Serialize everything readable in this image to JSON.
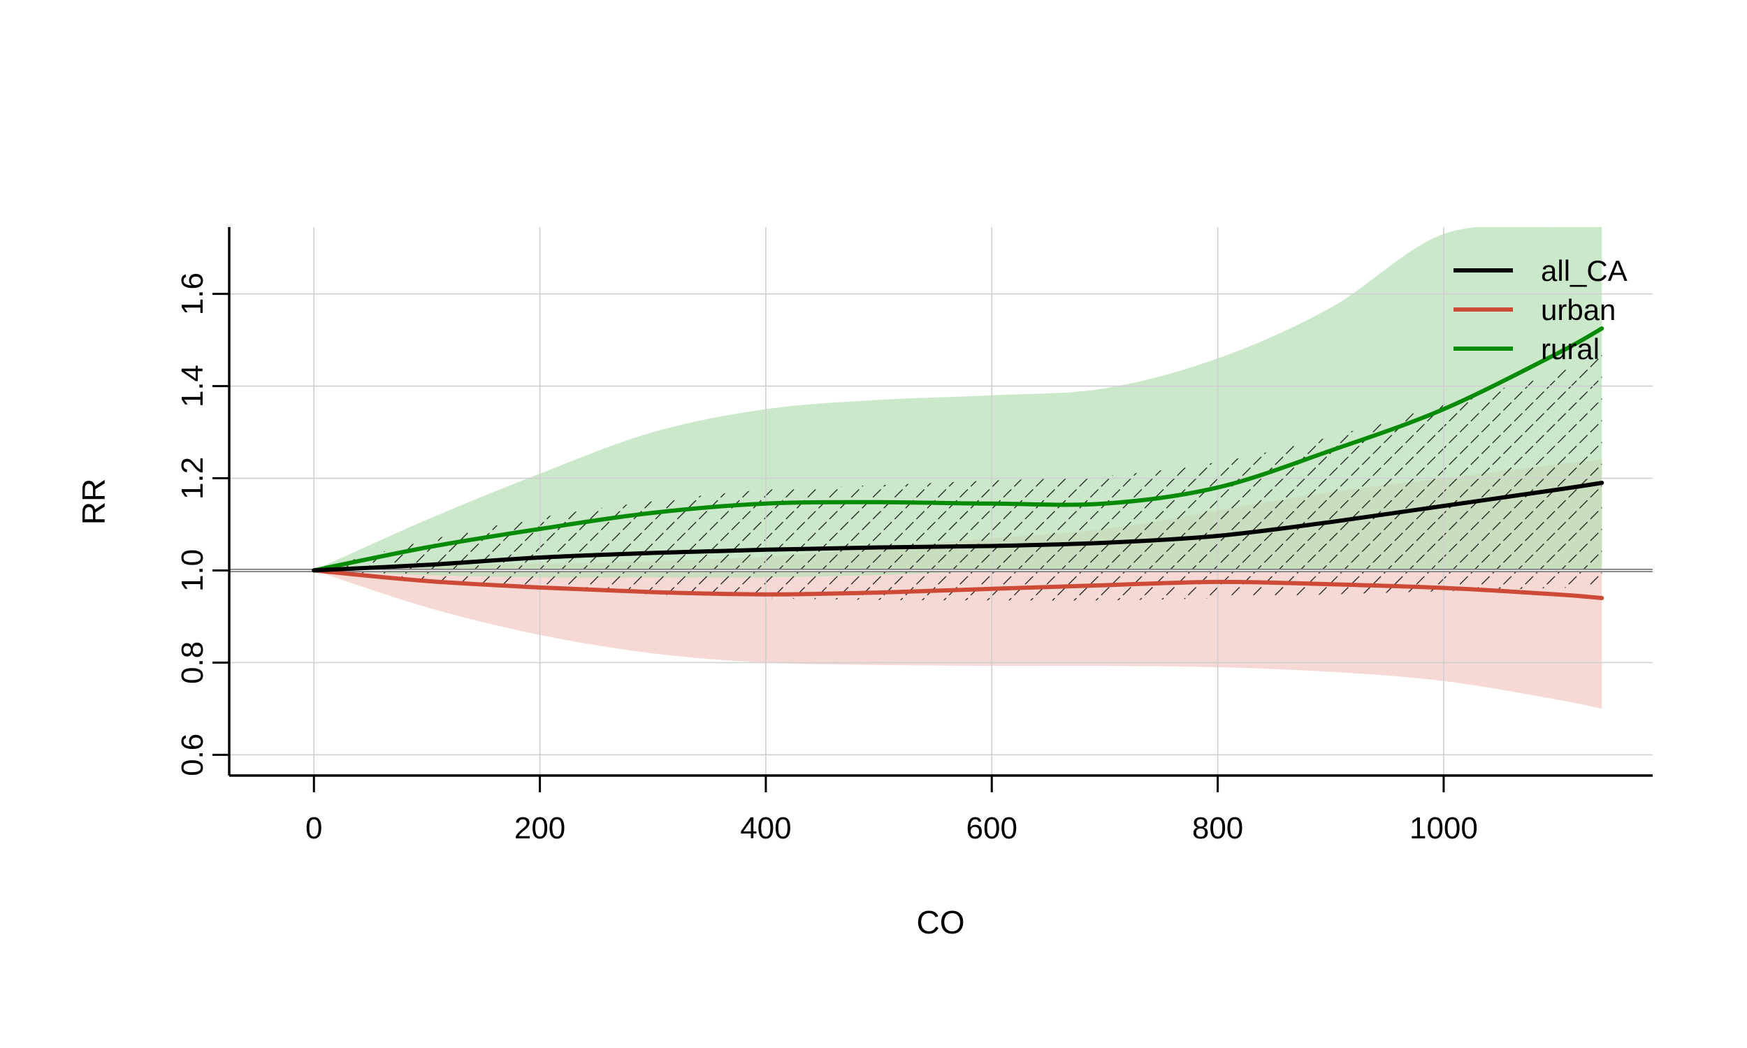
{
  "chart_data": {
    "type": "line",
    "xlabel": "CO",
    "ylabel": "RR",
    "xlim": [
      -75,
      1185
    ],
    "ylim": [
      0.555,
      1.745
    ],
    "xticks": [
      0,
      200,
      400,
      600,
      800,
      1000
    ],
    "yticks": [
      0.6,
      0.8,
      1.0,
      1.2,
      1.4,
      1.6
    ],
    "xtick_labels": [
      "0",
      "200",
      "400",
      "600",
      "800",
      "1000"
    ],
    "ytick_labels": [
      "0.6",
      "0.8",
      "1.0",
      "1.2",
      "1.4",
      "1.6"
    ],
    "grid": true,
    "reference_line": 1.0,
    "legend_position": "top-right",
    "x": [
      0,
      100,
      200,
      300,
      400,
      500,
      600,
      700,
      800,
      900,
      1000,
      1100,
      1140
    ],
    "series": [
      {
        "name": "all_CA",
        "color": "#000000",
        "band_style": "hatched",
        "values": [
          1.0,
          1.012,
          1.028,
          1.038,
          1.045,
          1.05,
          1.053,
          1.06,
          1.075,
          1.105,
          1.14,
          1.175,
          1.19
        ],
        "lower": [
          1.0,
          0.98,
          0.962,
          0.948,
          0.94,
          0.936,
          0.935,
          0.935,
          0.94,
          0.948,
          0.955,
          0.962,
          0.965
        ],
        "upper": [
          1.0,
          1.065,
          1.115,
          1.15,
          1.175,
          1.185,
          1.195,
          1.205,
          1.235,
          1.29,
          1.36,
          1.43,
          1.48
        ]
      },
      {
        "name": "urban",
        "color": "#cd4a37",
        "band_color": "#f2cbc5",
        "values": [
          1.0,
          0.977,
          0.963,
          0.953,
          0.948,
          0.952,
          0.96,
          0.968,
          0.975,
          0.97,
          0.962,
          0.948,
          0.94
        ],
        "lower": [
          1.0,
          0.92,
          0.86,
          0.82,
          0.8,
          0.795,
          0.793,
          0.793,
          0.79,
          0.78,
          0.76,
          0.72,
          0.7
        ],
        "upper": [
          1.0,
          1.01,
          1.015,
          1.02,
          1.03,
          1.05,
          1.07,
          1.09,
          1.13,
          1.17,
          1.2,
          1.23,
          1.24
        ]
      },
      {
        "name": "rural",
        "color": "#078b07",
        "band_color": "#b7dfb7",
        "values": [
          1.0,
          1.05,
          1.09,
          1.125,
          1.145,
          1.148,
          1.145,
          1.145,
          1.18,
          1.26,
          1.35,
          1.47,
          1.525
        ],
        "lower": [
          1.0,
          0.99,
          0.985,
          0.985,
          0.985,
          0.99,
          0.998,
          1.0,
          1.0,
          1.0,
          1.0,
          1.0,
          1.0
        ],
        "upper": [
          1.0,
          1.11,
          1.21,
          1.3,
          1.35,
          1.37,
          1.38,
          1.395,
          1.46,
          1.57,
          1.73,
          1.745,
          1.745
        ]
      }
    ]
  }
}
